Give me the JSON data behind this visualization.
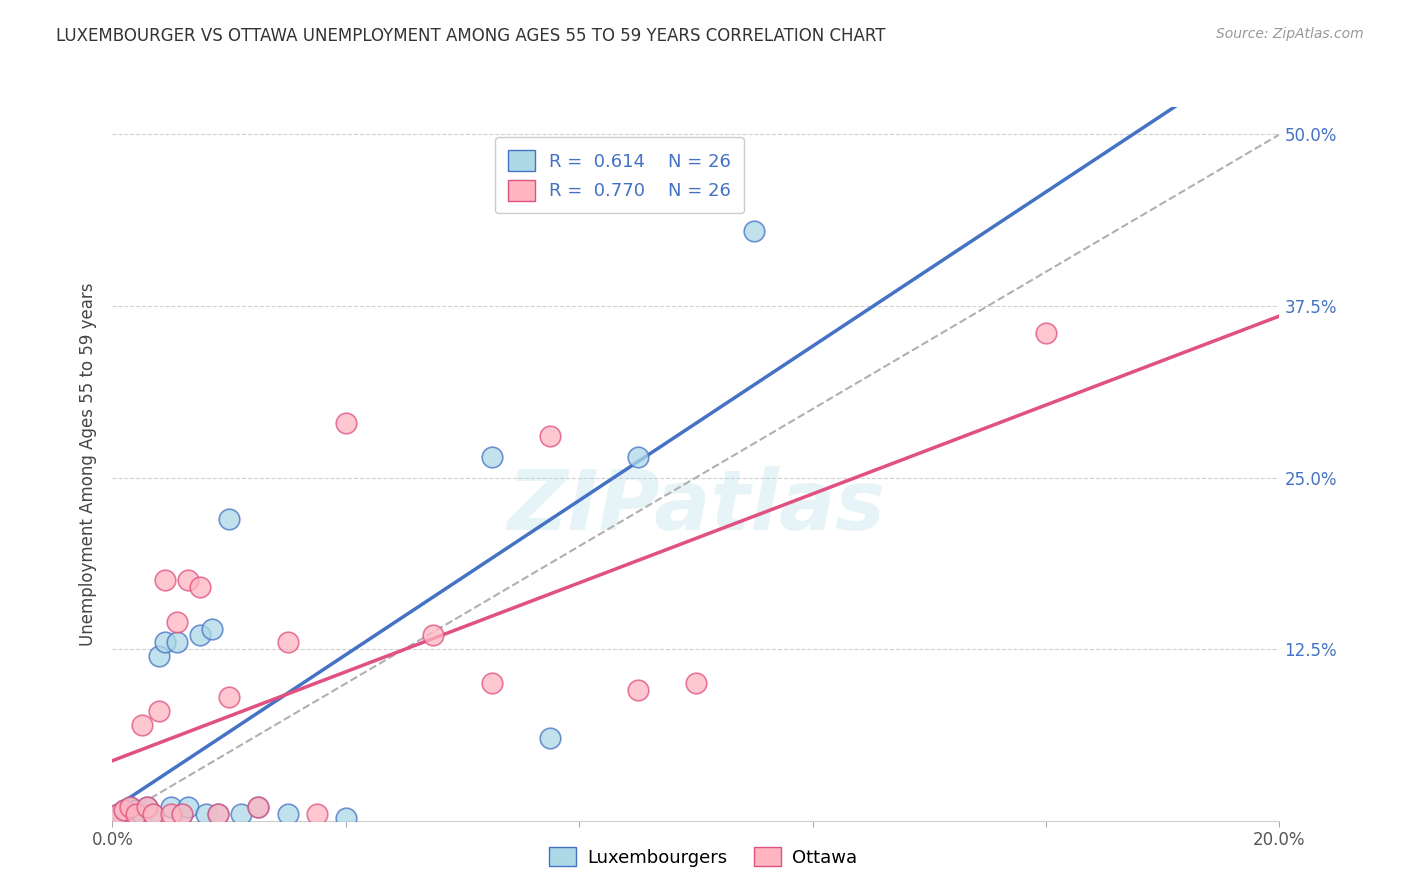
{
  "title": "LUXEMBOURGER VS OTTAWA UNEMPLOYMENT AMONG AGES 55 TO 59 YEARS CORRELATION CHART",
  "source": "Source: ZipAtlas.com",
  "ylabel": "Unemployment Among Ages 55 to 59 years",
  "xlim": [
    0.0,
    0.2
  ],
  "ylim": [
    0.0,
    0.52
  ],
  "x_ticks": [
    0.0,
    0.04,
    0.08,
    0.12,
    0.16,
    0.2
  ],
  "y_ticks": [
    0.125,
    0.25,
    0.375,
    0.5
  ],
  "y_tick_labels": [
    "12.5%",
    "25.0%",
    "37.5%",
    "50.0%"
  ],
  "legend_labels": [
    "Luxembourgers",
    "Ottawa"
  ],
  "R_lux": "0.614",
  "N_lux": "26",
  "R_ott": "0.770",
  "N_ott": "26",
  "color_lux_fill": "#add8e6",
  "color_ott_fill": "#ffb6c1",
  "color_lux_edge": "#6baed6",
  "color_ott_edge": "#f08080",
  "color_lux_line": "#4472c4",
  "color_ott_line": "#e05080",
  "color_diag": "#b0b0b0",
  "watermark_text": "ZIPatlas",
  "watermark_color": "#add8e6",
  "lux_x": [
    0.001,
    0.002,
    0.003,
    0.004,
    0.005,
    0.006,
    0.007,
    0.008,
    0.009,
    0.01,
    0.011,
    0.012,
    0.013,
    0.015,
    0.016,
    0.017,
    0.018,
    0.02,
    0.022,
    0.025,
    0.03,
    0.04,
    0.065,
    0.075,
    0.09,
    0.11
  ],
  "lux_y": [
    0.005,
    0.008,
    0.01,
    0.008,
    0.005,
    0.01,
    0.005,
    0.12,
    0.13,
    0.01,
    0.13,
    0.005,
    0.01,
    0.135,
    0.005,
    0.14,
    0.005,
    0.22,
    0.005,
    0.01,
    0.005,
    0.002,
    0.265,
    0.06,
    0.265,
    0.43
  ],
  "ott_x": [
    0.001,
    0.002,
    0.003,
    0.004,
    0.005,
    0.006,
    0.007,
    0.008,
    0.009,
    0.01,
    0.011,
    0.012,
    0.013,
    0.015,
    0.018,
    0.02,
    0.025,
    0.03,
    0.035,
    0.04,
    0.055,
    0.065,
    0.075,
    0.09,
    0.1,
    0.16
  ],
  "ott_y": [
    0.005,
    0.008,
    0.01,
    0.005,
    0.07,
    0.01,
    0.005,
    0.08,
    0.175,
    0.005,
    0.145,
    0.005,
    0.175,
    0.17,
    0.005,
    0.09,
    0.01,
    0.13,
    0.005,
    0.29,
    0.135,
    0.1,
    0.28,
    0.095,
    0.1,
    0.355
  ]
}
